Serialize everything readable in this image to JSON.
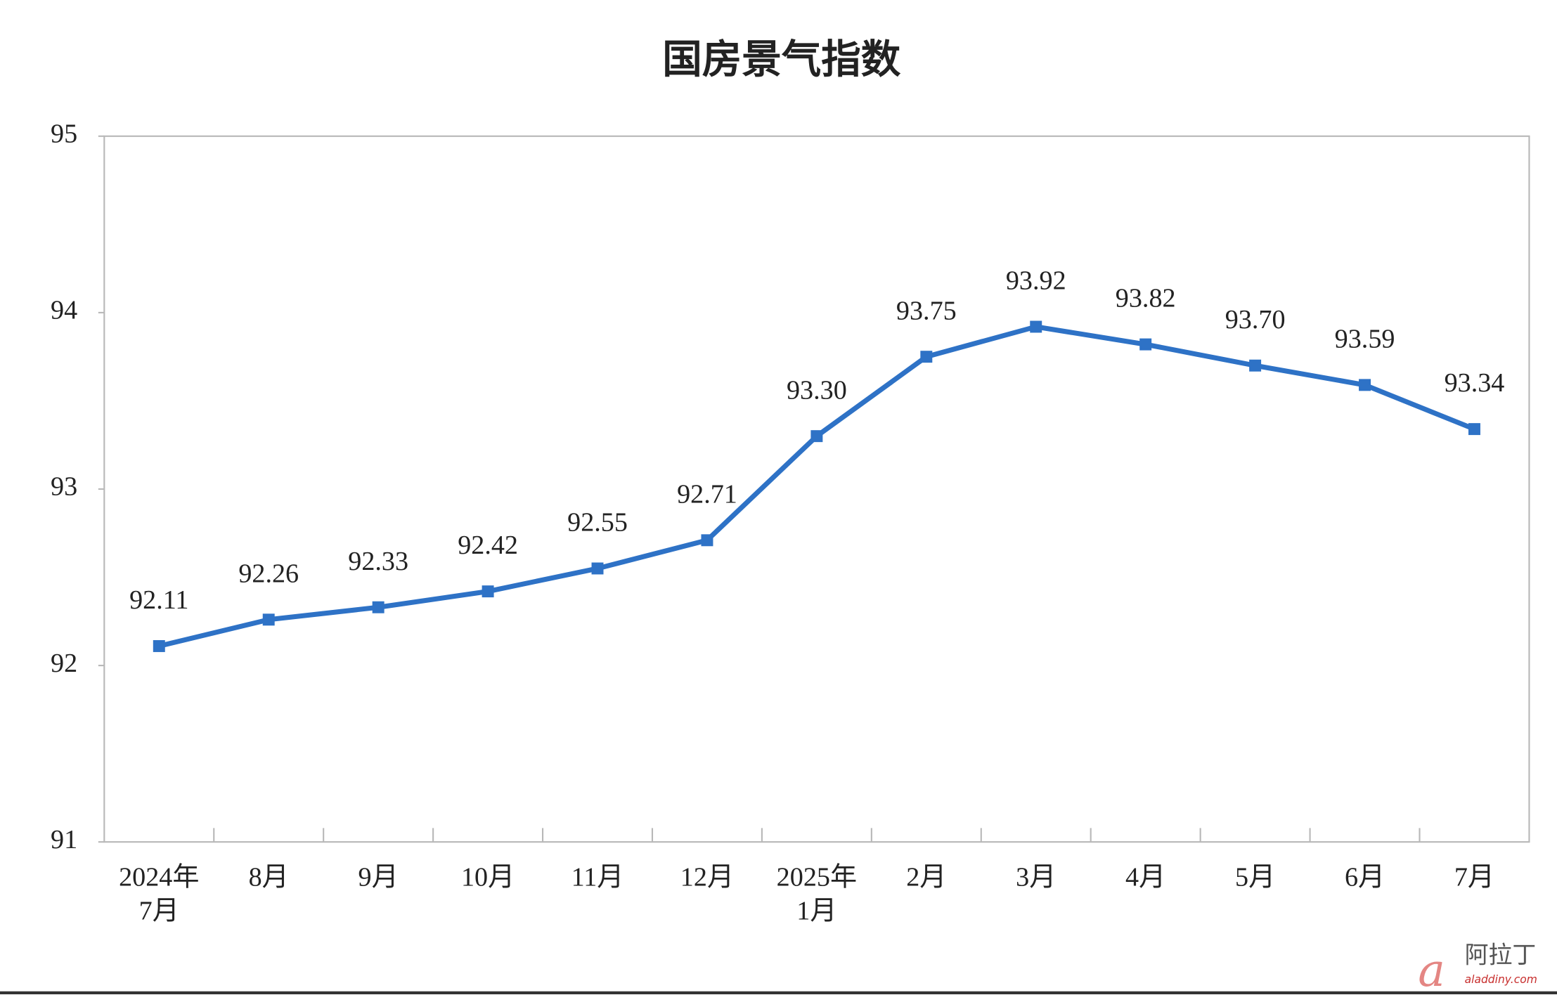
{
  "chart_data": {
    "type": "line",
    "title": "国房景气指数",
    "categories": [
      "2024年\n7月",
      "8月",
      "9月",
      "10月",
      "11月",
      "12月",
      "2025年\n1月",
      "2月",
      "3月",
      "4月",
      "5月",
      "6月",
      "7月"
    ],
    "series": [
      {
        "name": "国房景气指数",
        "color": "#2e72c6",
        "values": [
          92.11,
          92.26,
          92.33,
          92.42,
          92.55,
          92.71,
          93.3,
          93.75,
          93.92,
          93.82,
          93.7,
          93.59,
          93.34
        ],
        "value_labels": [
          "92.11",
          "92.26",
          "92.33",
          "92.42",
          "92.55",
          "92.71",
          "93.30",
          "93.75",
          "93.92",
          "93.82",
          "93.70",
          "93.59",
          "93.34"
        ]
      }
    ],
    "ylim": [
      91,
      95
    ],
    "yticks": [
      91,
      92,
      93,
      94,
      95
    ],
    "grid": false,
    "legend": false
  },
  "watermark": {
    "text": "阿拉丁",
    "url": "aladdiny.com"
  }
}
